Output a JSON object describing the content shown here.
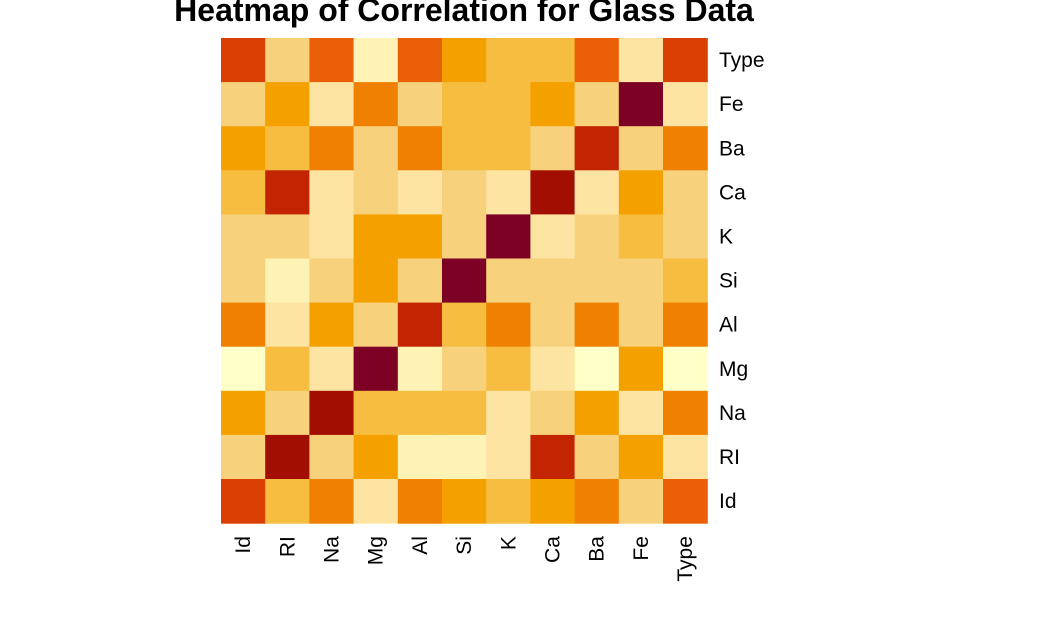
{
  "chart_data": {
    "type": "heatmap",
    "title": "Heatmap of Correlation for Glass Data",
    "x_labels": [
      "Id",
      "RI",
      "Na",
      "Mg",
      "Al",
      "Si",
      "K",
      "Ca",
      "Ba",
      "Fe",
      "Type"
    ],
    "y_labels_top_to_bottom": [
      "Type",
      "Fe",
      "Ba",
      "Ca",
      "K",
      "Si",
      "Al",
      "Mg",
      "Na",
      "RI",
      "Id"
    ],
    "value_scale": "0 = lightest (pale yellow) to 10 = darkest (dark red)",
    "palette": [
      "#FFFFC8",
      "#FEF2B5",
      "#FDE4A2",
      "#F7D17B",
      "#F6BD41",
      "#F4A100",
      "#F08000",
      "#EB5F06",
      "#DA3F03",
      "#C32503",
      "#A30E02",
      "#7D0025"
    ],
    "values": [
      [
        8,
        3,
        7,
        1,
        7,
        5,
        4,
        4,
        7,
        2,
        8
      ],
      [
        3,
        5,
        2,
        6,
        3,
        4,
        4,
        5,
        3,
        11,
        2
      ],
      [
        5,
        4,
        6,
        3,
        6,
        4,
        4,
        3,
        9,
        3,
        6
      ],
      [
        4,
        9,
        2,
        3,
        2,
        3,
        2,
        10,
        2,
        5,
        3
      ],
      [
        3,
        3,
        2,
        5,
        5,
        3,
        11,
        2,
        3,
        4,
        3
      ],
      [
        3,
        1,
        3,
        5,
        3,
        11,
        3,
        3,
        3,
        3,
        4
      ],
      [
        6,
        2,
        5,
        3,
        9,
        4,
        6,
        3,
        6,
        3,
        6
      ],
      [
        0,
        4,
        2,
        11,
        1,
        3,
        4,
        2,
        0,
        5,
        0
      ],
      [
        5,
        3,
        10,
        4,
        4,
        4,
        2,
        3,
        5,
        2,
        6
      ],
      [
        3,
        10,
        3,
        5,
        1,
        1,
        2,
        9,
        3,
        5,
        2
      ],
      [
        8,
        4,
        6,
        2,
        6,
        5,
        4,
        5,
        6,
        3,
        7
      ]
    ]
  }
}
